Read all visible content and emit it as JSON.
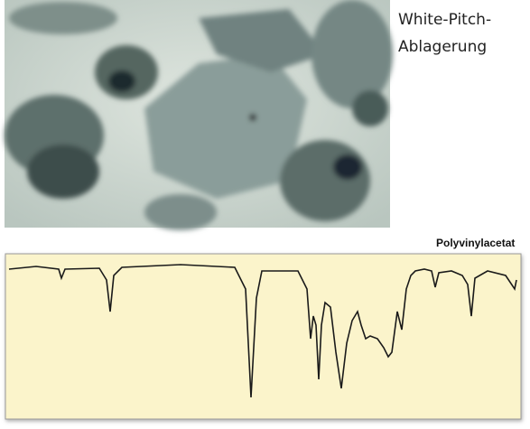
{
  "caption": {
    "line1": "White-Pitch-",
    "line2": "Ablagerung"
  },
  "spectrum": {
    "label": "Polyvinylacetat"
  }
}
